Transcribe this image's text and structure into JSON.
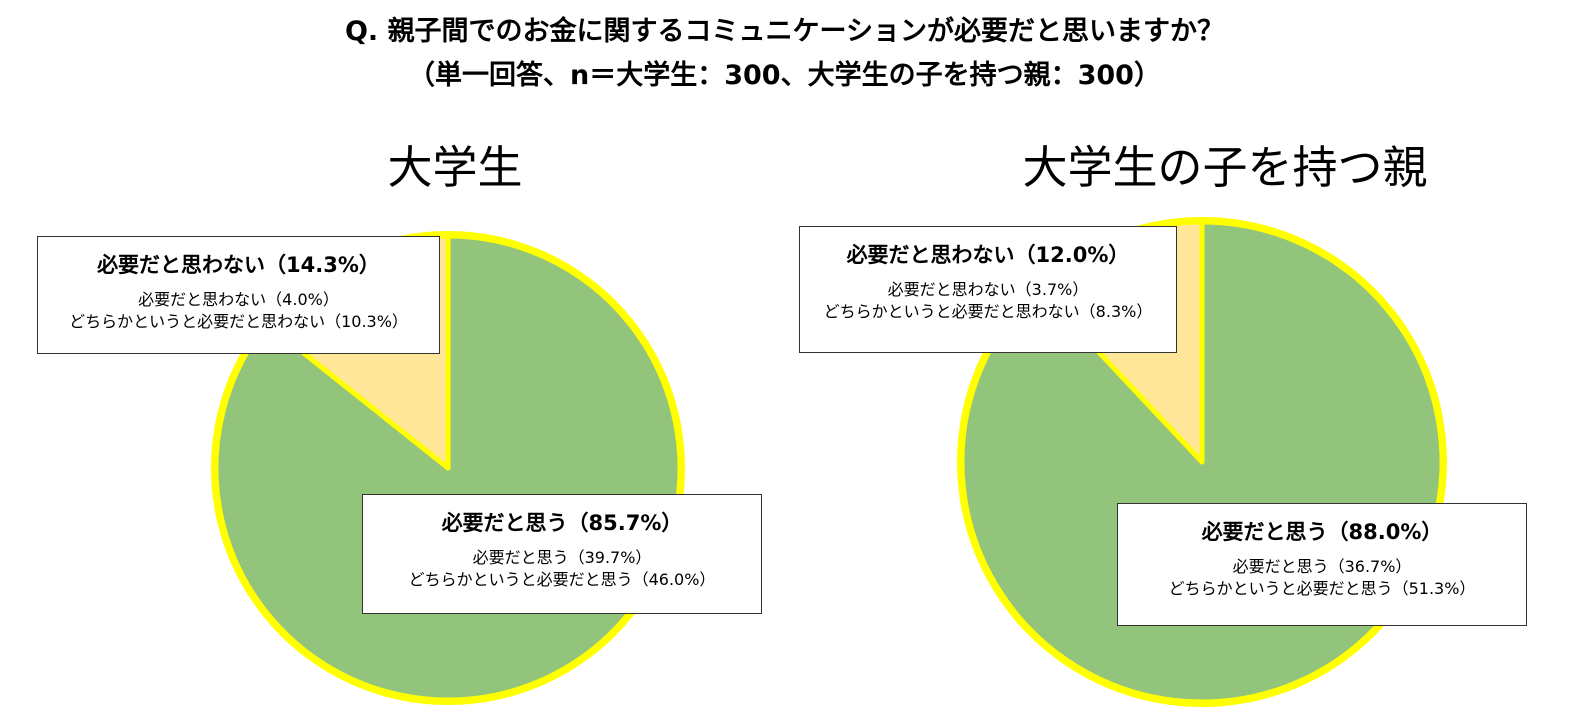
{
  "header": {
    "line1": "Q.  親子間でのお金に関するコミュニケーションが必要だと思いますか？",
    "line2": "（単一回答、n＝大学生：300、大学生の子を持つ親：300）"
  },
  "colors": {
    "necessary": "#92c47c",
    "not_necessary": "#ffe699",
    "outline": "#ffff00"
  },
  "chart_data": [
    {
      "type": "pie",
      "title": "大学生",
      "slices": [
        {
          "label": "必要だと思わない",
          "value": 14.3
        },
        {
          "label": "必要だと思う",
          "value": 85.7
        }
      ],
      "callouts": [
        {
          "head": "必要だと思わない（14.3%）",
          "lines": [
            "必要だと思わない（4.0%）",
            "どちらかというと必要だと思わない（10.3%）"
          ]
        },
        {
          "head": "必要だと思う（85.7%）",
          "lines": [
            "必要だと思う（39.7%）",
            "どちらかというと必要だと思う（46.0%）"
          ]
        }
      ]
    },
    {
      "type": "pie",
      "title": "大学生の子を持つ親",
      "slices": [
        {
          "label": "必要だと思わない",
          "value": 12.0
        },
        {
          "label": "必要だと思う",
          "value": 88.0
        }
      ],
      "callouts": [
        {
          "head": "必要だと思わない（12.0%）",
          "lines": [
            "必要だと思わない（3.7%）",
            "どちらかというと必要だと思わない（8.3%）"
          ]
        },
        {
          "head": "必要だと思う（88.0%）",
          "lines": [
            "必要だと思う（36.7%）",
            "どちらかというと必要だと思う（51.3%）"
          ]
        }
      ]
    }
  ]
}
